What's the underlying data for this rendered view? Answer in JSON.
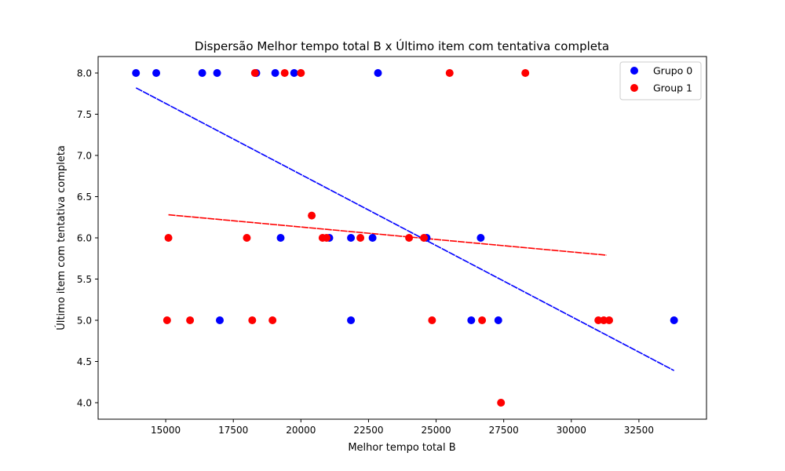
{
  "chart_data": {
    "type": "scatter",
    "title": "Dispersão Melhor tempo total B x Último item com tentativa completa",
    "xlabel": "Melhor tempo total B",
    "ylabel": "Último item com tentativa completa",
    "xlim": [
      12500,
      35000
    ],
    "ylim": [
      3.8,
      8.2
    ],
    "xticks": [
      15000,
      17500,
      20000,
      22500,
      25000,
      27500,
      30000,
      32500
    ],
    "xtick_labels": [
      "15000",
      "17500",
      "20000",
      "22500",
      "25000",
      "27500",
      "30000",
      "32500"
    ],
    "yticks": [
      4.0,
      4.5,
      5.0,
      5.5,
      6.0,
      6.5,
      7.0,
      7.5,
      8.0
    ],
    "ytick_labels": [
      "4.0",
      "4.5",
      "5.0",
      "5.5",
      "6.0",
      "6.5",
      "7.0",
      "7.5",
      "8.0"
    ],
    "grid": false,
    "legend_position": "top-right",
    "series": [
      {
        "name": "Grupo 0",
        "color": "#0000ff",
        "points": [
          [
            13900,
            8
          ],
          [
            14650,
            8
          ],
          [
            16350,
            8
          ],
          [
            16900,
            8
          ],
          [
            18350,
            8
          ],
          [
            19050,
            8
          ],
          [
            19750,
            8
          ],
          [
            22850,
            8
          ],
          [
            19250,
            6
          ],
          [
            21050,
            6
          ],
          [
            21850,
            6
          ],
          [
            22650,
            6
          ],
          [
            24650,
            6
          ],
          [
            26650,
            6
          ],
          [
            17000,
            5
          ],
          [
            21850,
            5
          ],
          [
            26300,
            5
          ],
          [
            27300,
            5
          ],
          [
            33800,
            5
          ]
        ],
        "trend": {
          "x": [
            13900,
            33800
          ],
          "y": [
            7.82,
            4.39
          ]
        }
      },
      {
        "name": "Group 1",
        "color": "#ff0000",
        "points": [
          [
            18300,
            8
          ],
          [
            19400,
            8
          ],
          [
            20000,
            8
          ],
          [
            25500,
            8
          ],
          [
            28300,
            8
          ],
          [
            20400,
            6.27
          ],
          [
            15100,
            6
          ],
          [
            18000,
            6
          ],
          [
            20800,
            6
          ],
          [
            20950,
            6
          ],
          [
            22200,
            6
          ],
          [
            24000,
            6
          ],
          [
            24550,
            6
          ],
          [
            15050,
            5
          ],
          [
            15900,
            5
          ],
          [
            18200,
            5
          ],
          [
            18950,
            5
          ],
          [
            24850,
            5
          ],
          [
            26700,
            5
          ],
          [
            31000,
            5
          ],
          [
            31200,
            5
          ],
          [
            31400,
            5
          ],
          [
            27400,
            4
          ]
        ],
        "trend": {
          "x": [
            15100,
            31300
          ],
          "y": [
            6.28,
            5.79
          ]
        }
      }
    ]
  }
}
